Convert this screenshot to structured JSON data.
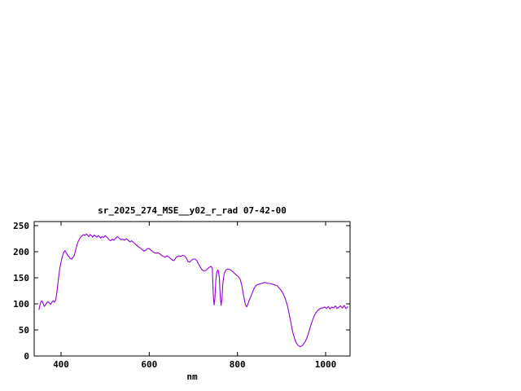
{
  "chart_data": {
    "type": "line",
    "title": "sr_2025_274_MSE__y02_r_rad 07-42-00",
    "xlabel": "nm",
    "ylabel": "",
    "xlim": [
      340,
      1055
    ],
    "ylim": [
      0,
      250
    ],
    "x_ticks": [
      400,
      600,
      800,
      1000
    ],
    "y_ticks": [
      0,
      50,
      100,
      150,
      200,
      250
    ],
    "grid": false,
    "legend": "none",
    "line_color": "#9400d3",
    "background_color": "#ffffff",
    "series": [
      {
        "name": "sr_2025_274_MSE__y02_r_rad",
        "points": [
          [
            350,
            89
          ],
          [
            352,
            97
          ],
          [
            354,
            103
          ],
          [
            356,
            106
          ],
          [
            358,
            104
          ],
          [
            360,
            99
          ],
          [
            362,
            95
          ],
          [
            364,
            97
          ],
          [
            366,
            100
          ],
          [
            368,
            103
          ],
          [
            370,
            104
          ],
          [
            373,
            102
          ],
          [
            376,
            99
          ],
          [
            379,
            103
          ],
          [
            382,
            106
          ],
          [
            385,
            103
          ],
          [
            388,
            107
          ],
          [
            391,
            125
          ],
          [
            394,
            148
          ],
          [
            397,
            168
          ],
          [
            400,
            180
          ],
          [
            403,
            191
          ],
          [
            406,
            199
          ],
          [
            409,
            202
          ],
          [
            412,
            198
          ],
          [
            415,
            193
          ],
          [
            418,
            190
          ],
          [
            421,
            187
          ],
          [
            424,
            186
          ],
          [
            427,
            189
          ],
          [
            430,
            193
          ],
          [
            433,
            203
          ],
          [
            436,
            213
          ],
          [
            439,
            220
          ],
          [
            442,
            225
          ],
          [
            445,
            229
          ],
          [
            448,
            231
          ],
          [
            451,
            233
          ],
          [
            454,
            231
          ],
          [
            457,
            234
          ],
          [
            460,
            232
          ],
          [
            463,
            229
          ],
          [
            466,
            233
          ],
          [
            469,
            231
          ],
          [
            472,
            228
          ],
          [
            475,
            232
          ],
          [
            478,
            230
          ],
          [
            481,
            228
          ],
          [
            484,
            231
          ],
          [
            487,
            229
          ],
          [
            490,
            226
          ],
          [
            493,
            229
          ],
          [
            496,
            227
          ],
          [
            500,
            231
          ],
          [
            504,
            228
          ],
          [
            508,
            224
          ],
          [
            512,
            221
          ],
          [
            516,
            224
          ],
          [
            520,
            222
          ],
          [
            524,
            226
          ],
          [
            528,
            229
          ],
          [
            532,
            226
          ],
          [
            536,
            223
          ],
          [
            540,
            224
          ],
          [
            544,
            222
          ],
          [
            548,
            225
          ],
          [
            552,
            222
          ],
          [
            556,
            219
          ],
          [
            560,
            221
          ],
          [
            564,
            218
          ],
          [
            568,
            215
          ],
          [
            572,
            212
          ],
          [
            576,
            209
          ],
          [
            580,
            207
          ],
          [
            584,
            204
          ],
          [
            588,
            201
          ],
          [
            592,
            203
          ],
          [
            596,
            206
          ],
          [
            600,
            206
          ],
          [
            604,
            203
          ],
          [
            608,
            200
          ],
          [
            612,
            198
          ],
          [
            616,
            197
          ],
          [
            620,
            198
          ],
          [
            624,
            196
          ],
          [
            628,
            193
          ],
          [
            632,
            191
          ],
          [
            636,
            189
          ],
          [
            640,
            192
          ],
          [
            644,
            190
          ],
          [
            648,
            187
          ],
          [
            652,
            184
          ],
          [
            656,
            183
          ],
          [
            660,
            188
          ],
          [
            664,
            191
          ],
          [
            668,
            192
          ],
          [
            672,
            191
          ],
          [
            676,
            193
          ],
          [
            680,
            192
          ],
          [
            684,
            188
          ],
          [
            688,
            181
          ],
          [
            692,
            180
          ],
          [
            696,
            184
          ],
          [
            700,
            186
          ],
          [
            704,
            186
          ],
          [
            708,
            183
          ],
          [
            712,
            176
          ],
          [
            716,
            170
          ],
          [
            720,
            165
          ],
          [
            724,
            163
          ],
          [
            728,
            164
          ],
          [
            732,
            167
          ],
          [
            736,
            170
          ],
          [
            740,
            172
          ],
          [
            743,
            168
          ],
          [
            745,
            120
          ],
          [
            747,
            98
          ],
          [
            749,
            110
          ],
          [
            751,
            145
          ],
          [
            753,
            160
          ],
          [
            755,
            165
          ],
          [
            757,
            163
          ],
          [
            759,
            150
          ],
          [
            761,
            115
          ],
          [
            763,
            97
          ],
          [
            765,
            110
          ],
          [
            767,
            140
          ],
          [
            770,
            158
          ],
          [
            774,
            165
          ],
          [
            778,
            167
          ],
          [
            782,
            166
          ],
          [
            786,
            164
          ],
          [
            790,
            161
          ],
          [
            794,
            158
          ],
          [
            798,
            155
          ],
          [
            802,
            152
          ],
          [
            806,
            148
          ],
          [
            810,
            135
          ],
          [
            814,
            115
          ],
          [
            818,
            99
          ],
          [
            821,
            94
          ],
          [
            824,
            100
          ],
          [
            827,
            108
          ],
          [
            830,
            113
          ],
          [
            834,
            122
          ],
          [
            838,
            130
          ],
          [
            842,
            135
          ],
          [
            846,
            137
          ],
          [
            850,
            138
          ],
          [
            854,
            139
          ],
          [
            858,
            140
          ],
          [
            862,
            141
          ],
          [
            866,
            140
          ],
          [
            870,
            139
          ],
          [
            874,
            139
          ],
          [
            878,
            138
          ],
          [
            882,
            137
          ],
          [
            886,
            136
          ],
          [
            890,
            135
          ],
          [
            894,
            131
          ],
          [
            898,
            127
          ],
          [
            902,
            122
          ],
          [
            906,
            115
          ],
          [
            910,
            106
          ],
          [
            914,
            94
          ],
          [
            918,
            78
          ],
          [
            922,
            60
          ],
          [
            926,
            44
          ],
          [
            930,
            32
          ],
          [
            934,
            24
          ],
          [
            938,
            20
          ],
          [
            942,
            18
          ],
          [
            946,
            19
          ],
          [
            950,
            23
          ],
          [
            954,
            28
          ],
          [
            958,
            36
          ],
          [
            962,
            46
          ],
          [
            966,
            58
          ],
          [
            970,
            68
          ],
          [
            974,
            77
          ],
          [
            978,
            83
          ],
          [
            982,
            87
          ],
          [
            986,
            90
          ],
          [
            990,
            92
          ],
          [
            994,
            92
          ],
          [
            998,
            94
          ],
          [
            1002,
            91
          ],
          [
            1006,
            95
          ],
          [
            1010,
            90
          ],
          [
            1014,
            94
          ],
          [
            1018,
            92
          ],
          [
            1022,
            96
          ],
          [
            1026,
            91
          ],
          [
            1030,
            94
          ],
          [
            1034,
            96
          ],
          [
            1038,
            92
          ],
          [
            1042,
            97
          ],
          [
            1046,
            91
          ],
          [
            1050,
            94
          ]
        ]
      }
    ]
  }
}
